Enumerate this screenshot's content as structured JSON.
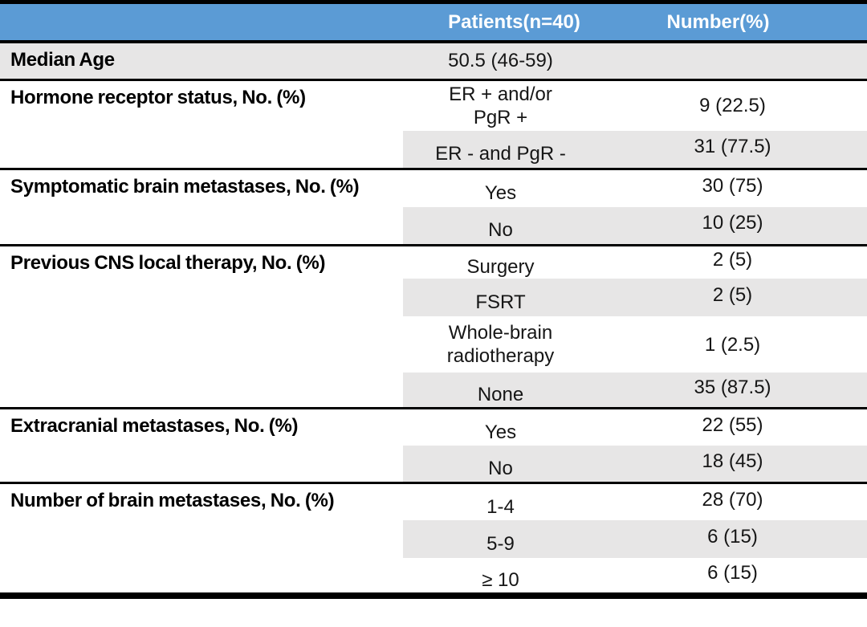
{
  "table": {
    "columns": [
      "",
      "Patients(n=40)",
      "Number(%)"
    ],
    "sections": [
      {
        "label": "Median Age",
        "rows": [
          {
            "category": "50.5 (46-59)",
            "value": ""
          }
        ]
      },
      {
        "label": "Hormone receptor status, No. (%)",
        "rows": [
          {
            "category": "ER + and/or\nPgR +",
            "value": "9 (22.5)"
          },
          {
            "category": "ER - and PgR -",
            "value": "31 (77.5)"
          }
        ]
      },
      {
        "label": "Symptomatic brain metastases, No. (%)",
        "rows": [
          {
            "category": "Yes",
            "value": "30 (75)"
          },
          {
            "category": "No",
            "value": "10 (25)"
          }
        ]
      },
      {
        "label": "Previous CNS local therapy, No. (%)",
        "rows": [
          {
            "category": "Surgery",
            "value": "2 (5)"
          },
          {
            "category": "FSRT",
            "value": "2 (5)"
          },
          {
            "category": "Whole-brain\nradiotherapy",
            "value": "1 (2.5)"
          },
          {
            "category": "None",
            "value": "35 (87.5)"
          }
        ]
      },
      {
        "label": "Extracranial metastases, No. (%)",
        "rows": [
          {
            "category": "Yes",
            "value": "22 (55)"
          },
          {
            "category": "No",
            "value": "18 (45)"
          }
        ]
      },
      {
        "label": "Number of brain metastases, No. (%)",
        "rows": [
          {
            "category": "1-4",
            "value": "28 (70)"
          },
          {
            "category": "5-9",
            "value": "6 (15)"
          },
          {
            "category": "≥ 10",
            "value": "6 (15)"
          }
        ]
      }
    ]
  },
  "colors": {
    "header_bg": "#5B9BD5",
    "header_text": "#FFFFFF",
    "row_shade": "#E7E6E6",
    "rule": "#000000"
  }
}
